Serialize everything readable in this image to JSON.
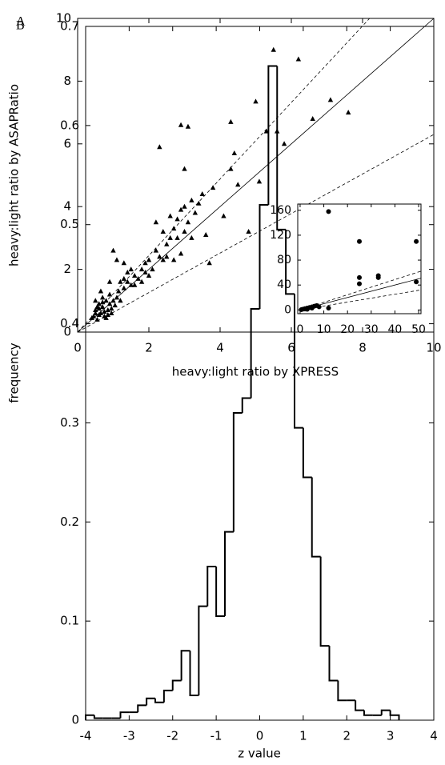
{
  "chart_data": [
    {
      "type": "scatter",
      "panel_label": "A",
      "x_label": "heavy:light ratio by XPRESS",
      "y_label": "heavy:light ratio by ASAPRatio",
      "marker": "triangle",
      "color": "#000000",
      "xlim": [
        0,
        10
      ],
      "ylim": [
        0,
        10
      ],
      "xticks": [
        0,
        2,
        4,
        6,
        8,
        10
      ],
      "yticks": [
        0,
        2,
        4,
        6,
        8,
        10
      ],
      "reference_lines": [
        {
          "slope": 1,
          "style": "solid"
        },
        {
          "slope": 1.22,
          "style": "dashed"
        },
        {
          "slope": 0.63,
          "style": "dashed"
        }
      ],
      "x": [
        0.45,
        0.5,
        0.55,
        0.6,
        0.65,
        0.7,
        0.75,
        0.8,
        0.85,
        0.9,
        0.5,
        0.55,
        0.6,
        0.7,
        0.75,
        0.8,
        0.9,
        0.95,
        1.0,
        1.05,
        0.65,
        0.5,
        0.6,
        0.7,
        0.85,
        1.1,
        1.15,
        0.4,
        0.95,
        1.2,
        1.3,
        1.4,
        1.5,
        1.6,
        1.7,
        1.8,
        1.9,
        2.0,
        2.1,
        2.2,
        2.3,
        1.5,
        1.4,
        1.2,
        1.6,
        1.8,
        2.0,
        2.4,
        2.5,
        1.3,
        1.9,
        1.1,
        1.0,
        1.3,
        0.9,
        2.6,
        2.7,
        2.8,
        2.9,
        3.0,
        3.1,
        3.2,
        3.3,
        2.6,
        2.8,
        3.4,
        2.9,
        2.7,
        2.5,
        3.0,
        3.2,
        2.4,
        2.2,
        5.5,
        6.2,
        7.1,
        7.6,
        6.6,
        2.9,
        3.1,
        2.3,
        4.3,
        5.0,
        5.3,
        5.6,
        4.4,
        3.7,
        4.3,
        3.0,
        3.5,
        3.8,
        4.1,
        4.5,
        5.8,
        3.6,
        4.8,
        5.1
      ],
      "y": [
        0.5,
        0.7,
        0.4,
        0.9,
        0.6,
        0.8,
        0.5,
        1.0,
        0.7,
        0.9,
        1.0,
        0.8,
        0.55,
        1.1,
        0.65,
        0.45,
        1.2,
        0.75,
        1.0,
        0.85,
        1.3,
        0.6,
        0.75,
        0.95,
        0.55,
        1.1,
        1.3,
        0.45,
        0.6,
        1.0,
        1.4,
        1.6,
        1.5,
        1.8,
        1.7,
        2.0,
        2.2,
        2.3,
        2.0,
        2.6,
        2.4,
        2.0,
        1.9,
        1.6,
        1.5,
        1.6,
        1.8,
        2.3,
        2.8,
        1.7,
        1.9,
        2.3,
        2.6,
        2.2,
        1.6,
        3.0,
        3.3,
        3.6,
        3.9,
        3.2,
        3.5,
        4.2,
        3.8,
        3.7,
        3.0,
        4.1,
        2.5,
        2.3,
        2.4,
        4.0,
        3.0,
        3.2,
        3.5,
        9.0,
        8.7,
        7.4,
        7.0,
        6.8,
        6.6,
        6.55,
        5.9,
        6.7,
        7.35,
        6.4,
        6.4,
        5.7,
        2.2,
        5.2,
        5.2,
        4.4,
        4.6,
        3.7,
        4.7,
        6.0,
        3.1,
        3.2,
        4.8
      ]
    },
    {
      "type": "scatter",
      "marker": "circle",
      "color": "#000000",
      "xlim": [
        -1,
        51
      ],
      "ylim": [
        -6,
        170
      ],
      "xticks": [
        0,
        10,
        20,
        30,
        40,
        50
      ],
      "yticks": [
        0,
        40,
        80,
        120,
        160
      ],
      "reference_lines": [
        {
          "slope": 1,
          "style": "solid"
        },
        {
          "slope": 1.22,
          "style": "dashed"
        },
        {
          "slope": 0.63,
          "style": "dashed"
        }
      ],
      "x": [
        0.5,
        1,
        2,
        3,
        3,
        4,
        5,
        6,
        7,
        8,
        5,
        2,
        12,
        12,
        25,
        49,
        25,
        25,
        33,
        33,
        49
      ],
      "y": [
        0.5,
        1,
        2,
        1,
        3,
        4,
        5,
        6,
        7,
        5,
        3,
        1.5,
        3,
        158,
        110,
        110,
        52,
        42,
        55,
        52,
        45
      ]
    },
    {
      "type": "histogram",
      "panel_label": "B",
      "x_label": "z value",
      "y_label": "frequency",
      "color": "#000000",
      "xlim": [
        -4,
        4
      ],
      "ylim": [
        0,
        0.7
      ],
      "xticks": [
        -4,
        -3,
        -2,
        -1,
        0,
        1,
        2,
        3,
        4
      ],
      "yticks": [
        0,
        0.1,
        0.2,
        0.3,
        0.4,
        0.5,
        0.6,
        0.7
      ],
      "bins": [
        -4.0,
        -3.8,
        -3.6,
        -3.4,
        -3.2,
        -3.0,
        -2.8,
        -2.6,
        -2.4,
        -2.2,
        -2.0,
        -1.8,
        -1.6,
        -1.4,
        -1.2,
        -1.0,
        -0.8,
        -0.6,
        -0.4,
        -0.2,
        0.0,
        0.2,
        0.4,
        0.6,
        0.8,
        1.0,
        1.2,
        1.4,
        1.6,
        1.8,
        2.0,
        2.2,
        2.4,
        2.6,
        2.8,
        3.0,
        3.2
      ],
      "values": [
        0.005,
        0.002,
        0.002,
        0.002,
        0.008,
        0.008,
        0.015,
        0.022,
        0.018,
        0.03,
        0.04,
        0.07,
        0.025,
        0.115,
        0.155,
        0.105,
        0.19,
        0.31,
        0.325,
        0.415,
        0.52,
        0.66,
        0.495,
        0.43,
        0.295,
        0.245,
        0.165,
        0.075,
        0.04,
        0.02,
        0.02,
        0.01,
        0.005,
        0.005,
        0.01,
        0.005
      ]
    }
  ]
}
